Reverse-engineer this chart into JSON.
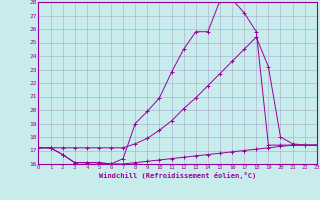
{
  "xlabel": "Windchill (Refroidissement éolien,°C)",
  "bg_color": "#c8ecec",
  "line_color": "#990099",
  "grid_color": "#aaaacc",
  "ylim": [
    16,
    28
  ],
  "xlim": [
    0,
    23
  ],
  "yticks": [
    16,
    17,
    18,
    19,
    20,
    21,
    22,
    23,
    24,
    25,
    26,
    27,
    28
  ],
  "xticks": [
    0,
    1,
    2,
    3,
    4,
    5,
    6,
    7,
    8,
    9,
    10,
    11,
    12,
    13,
    14,
    15,
    16,
    17,
    18,
    19,
    20,
    21,
    22,
    23
  ],
  "series": [
    {
      "x": [
        0,
        1,
        2,
        3,
        4,
        5,
        6,
        7,
        8,
        9,
        10,
        11,
        12,
        13,
        14,
        15,
        16,
        17,
        18,
        19,
        20,
        21,
        22,
        23
      ],
      "y": [
        17.2,
        17.2,
        16.7,
        16.1,
        16.1,
        16.1,
        16.0,
        16.4,
        19.0,
        19.9,
        20.9,
        22.8,
        24.5,
        25.8,
        25.8,
        28.1,
        28.2,
        27.2,
        25.8,
        17.4,
        17.4,
        17.4,
        17.4,
        17.4
      ]
    },
    {
      "x": [
        0,
        1,
        2,
        3,
        4,
        5,
        6,
        7,
        8,
        9,
        10,
        11,
        12,
        13,
        14,
        15,
        16,
        17,
        18,
        19,
        20,
        21,
        22,
        23
      ],
      "y": [
        17.2,
        17.2,
        16.7,
        16.1,
        16.1,
        16.1,
        16.0,
        16.0,
        16.1,
        16.2,
        16.3,
        16.4,
        16.5,
        16.6,
        16.7,
        16.8,
        16.9,
        17.0,
        17.1,
        17.2,
        17.3,
        17.4,
        17.4,
        17.4
      ]
    },
    {
      "x": [
        0,
        1,
        2,
        3,
        4,
        5,
        6,
        7,
        8,
        9,
        10,
        11,
        12,
        13,
        14,
        15,
        16,
        17,
        18,
        19,
        20,
        21,
        22,
        23
      ],
      "y": [
        17.2,
        17.2,
        17.2,
        17.2,
        17.2,
        17.2,
        17.2,
        17.2,
        17.5,
        17.9,
        18.5,
        19.2,
        20.1,
        20.9,
        21.8,
        22.7,
        23.6,
        24.5,
        25.4,
        23.2,
        18.0,
        17.5,
        17.4,
        17.4
      ]
    }
  ]
}
